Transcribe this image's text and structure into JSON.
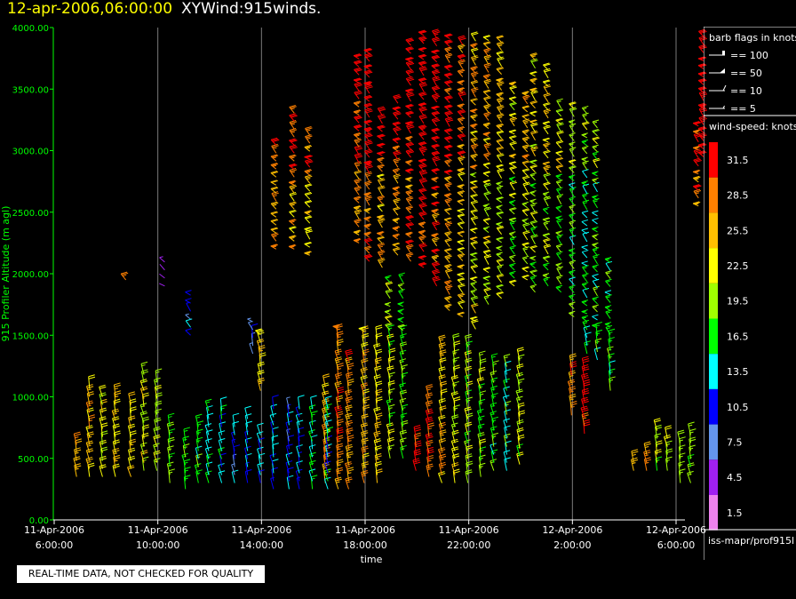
{
  "header": {
    "timestamp": "12-apr-2006,06:00:00",
    "title": "XYWind:915winds."
  },
  "quality_notice": "REAL-TIME DATA, NOT CHECKED FOR QUALITY",
  "source_path": "iss-mapr/prof915l",
  "colors": {
    "axis": "#00ff00",
    "timestamp": "#ffff00",
    "background": "#000000"
  },
  "chart_data": {
    "type": "wind-barb time-height plot",
    "xlabel": "time",
    "ylabel": "915 Profiler Altitude (m agl)",
    "ylim": [
      0,
      4000
    ],
    "yticks": [
      "0.00",
      "500.00",
      "1000.00",
      "1500.00",
      "2000.00",
      "2500.00",
      "3000.00",
      "3500.00",
      "4000.00"
    ],
    "xticks": [
      {
        "date": "11-Apr-2006",
        "time": "6:00:00"
      },
      {
        "date": "11-Apr-2006",
        "time": "10:00:00"
      },
      {
        "date": "11-Apr-2006",
        "time": "14:00:00"
      },
      {
        "date": "11-Apr-2006",
        "time": "18:00:00"
      },
      {
        "date": "11-Apr-2006",
        "time": "22:00:00"
      },
      {
        "date": "12-Apr-2006",
        "time": "2:00:00"
      },
      {
        "date": "12-Apr-2006",
        "time": "6:00:00"
      }
    ],
    "grid": "vertical lines at each time tick",
    "barb_legend": {
      "title": "barb flags in knots",
      "entries": [
        "== 100",
        "== 50",
        "== 10",
        "== 5"
      ]
    },
    "speed_legend": {
      "title": "wind-speed: knots",
      "bins": [
        {
          "label": "31.5",
          "color": "#ff0000"
        },
        {
          "label": "28.5",
          "color": "#ff8000"
        },
        {
          "label": "25.5",
          "color": "#ffbf00"
        },
        {
          "label": "22.5",
          "color": "#ffff00"
        },
        {
          "label": "19.5",
          "color": "#a0ff00"
        },
        {
          "label": "16.5",
          "color": "#00ff00"
        },
        {
          "label": "13.5",
          "color": "#00ffff"
        },
        {
          "label": "10.5",
          "color": "#0000ff"
        },
        {
          "label": "7.5",
          "color": "#6495ed"
        },
        {
          "label": "4.5",
          "color": "#a020f0"
        },
        {
          "label": "1.5",
          "color": "#ee82ee"
        }
      ]
    },
    "profiles": [
      {
        "hour": 0.9,
        "bottom": 350,
        "top": 650,
        "speed": 27
      },
      {
        "hour": 1.4,
        "bottom": 350,
        "top": 1100,
        "speed": 25
      },
      {
        "hour": 1.9,
        "bottom": 350,
        "top": 1050,
        "speed": 23
      },
      {
        "hour": 2.4,
        "bottom": 350,
        "top": 1000,
        "speed": 24
      },
      {
        "hour": 2.8,
        "bottom": 1950,
        "top": 2000,
        "speed": 27
      },
      {
        "hour": 3.0,
        "bottom": 350,
        "top": 950,
        "speed": 24
      },
      {
        "hour": 3.5,
        "bottom": 400,
        "top": 1200,
        "speed": 22
      },
      {
        "hour": 4.0,
        "bottom": 400,
        "top": 1150,
        "speed": 21
      },
      {
        "hour": 4.3,
        "bottom": 1900,
        "top": 2100,
        "speed": 6
      },
      {
        "hour": 4.5,
        "bottom": 300,
        "top": 800,
        "speed": 18
      },
      {
        "hour": 5.1,
        "bottom": 250,
        "top": 700,
        "speed": 16
      },
      {
        "hour": 5.3,
        "bottom": 1500,
        "top": 1850,
        "speed": 10
      },
      {
        "hour": 5.6,
        "bottom": 300,
        "top": 800,
        "speed": 17
      },
      {
        "hour": 6.0,
        "bottom": 300,
        "top": 900,
        "speed": 15
      },
      {
        "hour": 6.5,
        "bottom": 300,
        "top": 900,
        "speed": 13
      },
      {
        "hour": 7.0,
        "bottom": 300,
        "top": 800,
        "speed": 11
      },
      {
        "hour": 7.5,
        "bottom": 300,
        "top": 850,
        "speed": 12
      },
      {
        "hour": 7.7,
        "bottom": 1350,
        "top": 1650,
        "speed": 9
      },
      {
        "hour": 8.0,
        "bottom": 1050,
        "top": 1550,
        "speed": 24
      },
      {
        "hour": 8.0,
        "bottom": 300,
        "top": 700,
        "speed": 13
      },
      {
        "hour": 8.5,
        "bottom": 250,
        "top": 900,
        "speed": 12
      },
      {
        "hour": 8.6,
        "bottom": 2200,
        "top": 3100,
        "speed": 27
      },
      {
        "hour": 9.1,
        "bottom": 250,
        "top": 950,
        "speed": 11
      },
      {
        "hour": 9.3,
        "bottom": 2200,
        "top": 3350,
        "speed": 26
      },
      {
        "hour": 9.5,
        "bottom": 250,
        "top": 900,
        "speed": 12
      },
      {
        "hour": 9.9,
        "bottom": 2150,
        "top": 3150,
        "speed": 25
      },
      {
        "hour": 10.0,
        "bottom": 250,
        "top": 950,
        "speed": 14
      },
      {
        "hour": 10.5,
        "bottom": 300,
        "top": 1100,
        "speed": 26
      },
      {
        "hour": 10.6,
        "bottom": 250,
        "top": 950,
        "speed": 14
      },
      {
        "hour": 11.0,
        "bottom": 250,
        "top": 1550,
        "speed": 28
      },
      {
        "hour": 11.4,
        "bottom": 250,
        "top": 1350,
        "speed": 28
      },
      {
        "hour": 11.8,
        "bottom": 2250,
        "top": 3800,
        "speed": 27
      },
      {
        "hour": 12.0,
        "bottom": 300,
        "top": 1550,
        "speed": 25
      },
      {
        "hour": 12.2,
        "bottom": 2100,
        "top": 3850,
        "speed": 29
      },
      {
        "hour": 12.5,
        "bottom": 300,
        "top": 1500,
        "speed": 24
      },
      {
        "hour": 12.7,
        "bottom": 2050,
        "top": 3300,
        "speed": 26
      },
      {
        "hour": 13.0,
        "bottom": 500,
        "top": 1950,
        "speed": 20
      },
      {
        "hour": 13.3,
        "bottom": 2150,
        "top": 3400,
        "speed": 27
      },
      {
        "hour": 13.5,
        "bottom": 500,
        "top": 1950,
        "speed": 18
      },
      {
        "hour": 13.8,
        "bottom": 2100,
        "top": 3900,
        "speed": 28
      },
      {
        "hour": 14.0,
        "bottom": 400,
        "top": 700,
        "speed": 31
      },
      {
        "hour": 14.3,
        "bottom": 2050,
        "top": 3950,
        "speed": 30
      },
      {
        "hour": 14.5,
        "bottom": 350,
        "top": 1050,
        "speed": 30
      },
      {
        "hour": 14.8,
        "bottom": 1900,
        "top": 3950,
        "speed": 29
      },
      {
        "hour": 15.0,
        "bottom": 300,
        "top": 1450,
        "speed": 25
      },
      {
        "hour": 15.3,
        "bottom": 1700,
        "top": 3950,
        "speed": 27
      },
      {
        "hour": 15.5,
        "bottom": 300,
        "top": 1450,
        "speed": 22
      },
      {
        "hour": 15.8,
        "bottom": 1650,
        "top": 3900,
        "speed": 24
      },
      {
        "hour": 16.0,
        "bottom": 300,
        "top": 1450,
        "speed": 20
      },
      {
        "hour": 16.3,
        "bottom": 1550,
        "top": 3950,
        "speed": 22
      },
      {
        "hour": 16.5,
        "bottom": 350,
        "top": 1300,
        "speed": 19
      },
      {
        "hour": 16.8,
        "bottom": 1750,
        "top": 3900,
        "speed": 22
      },
      {
        "hour": 17.0,
        "bottom": 400,
        "top": 1300,
        "speed": 17
      },
      {
        "hour": 17.3,
        "bottom": 1800,
        "top": 3900,
        "speed": 21
      },
      {
        "hour": 17.5,
        "bottom": 400,
        "top": 1250,
        "speed": 16
      },
      {
        "hour": 17.8,
        "bottom": 1900,
        "top": 3550,
        "speed": 19
      },
      {
        "hour": 18.0,
        "bottom": 450,
        "top": 1300,
        "speed": 20
      },
      {
        "hour": 18.3,
        "bottom": 1950,
        "top": 3500,
        "speed": 21
      },
      {
        "hour": 18.6,
        "bottom": 1850,
        "top": 3750,
        "speed": 19
      },
      {
        "hour": 19.1,
        "bottom": 1900,
        "top": 3700,
        "speed": 20
      },
      {
        "hour": 19.6,
        "bottom": 1850,
        "top": 3400,
        "speed": 18
      },
      {
        "hour": 20.0,
        "bottom": 850,
        "top": 1300,
        "speed": 28
      },
      {
        "hour": 20.1,
        "bottom": 1650,
        "top": 3350,
        "speed": 17
      },
      {
        "hour": 20.5,
        "bottom": 700,
        "top": 1250,
        "speed": 30
      },
      {
        "hour": 20.6,
        "bottom": 1350,
        "top": 3300,
        "speed": 15
      },
      {
        "hour": 21.0,
        "bottom": 1300,
        "top": 3200,
        "speed": 16
      },
      {
        "hour": 21.5,
        "bottom": 1050,
        "top": 2150,
        "speed": 17
      },
      {
        "hour": 22.4,
        "bottom": 400,
        "top": 500,
        "speed": 28
      },
      {
        "hour": 22.9,
        "bottom": 400,
        "top": 550,
        "speed": 25
      },
      {
        "hour": 23.3,
        "bottom": 400,
        "top": 750,
        "speed": 20
      },
      {
        "hour": 23.7,
        "bottom": 400,
        "top": 700,
        "speed": 22
      },
      {
        "hour": 24.2,
        "bottom": 300,
        "top": 650,
        "speed": 21
      },
      {
        "hour": 24.6,
        "bottom": 300,
        "top": 750,
        "speed": 18
      },
      {
        "hour": 24.9,
        "bottom": 2550,
        "top": 3200,
        "speed": 28
      },
      {
        "hour": 25.1,
        "bottom": 2950,
        "top": 3950,
        "speed": 30
      }
    ]
  }
}
